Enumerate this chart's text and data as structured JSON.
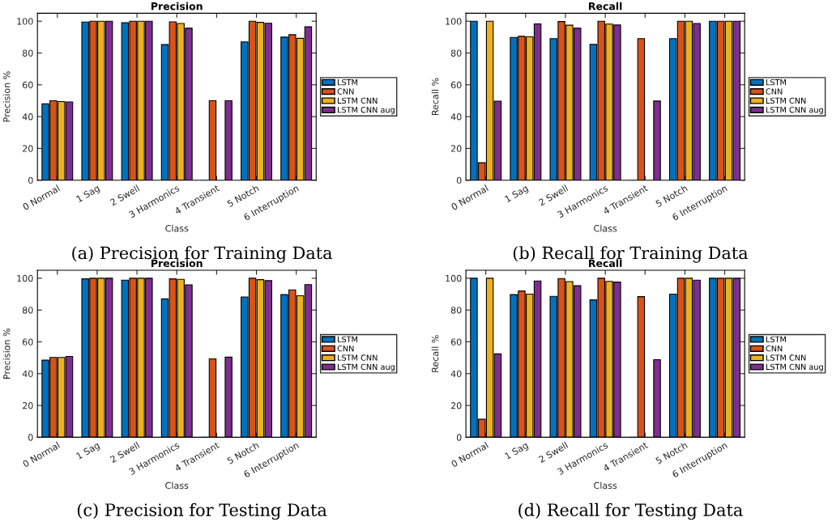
{
  "chart_data": [
    {
      "type": "bar",
      "title": "Precision",
      "xlabel": "Class",
      "ylabel": "Precision %",
      "annotations": [
        "(a) Precision for Training Data"
      ],
      "categories": [
        "0 Normal",
        "1 Sag",
        "2 Swell",
        "3 Harmonics",
        "4 Transient",
        "5 Notch",
        "6 Interruption"
      ],
      "ylim": [
        0,
        105
      ],
      "yticks": [
        0,
        20,
        40,
        60,
        80,
        100
      ],
      "grid": false,
      "legend": "right",
      "series": [
        {
          "name": "LSTM",
          "color": "#0072bd",
          "values": [
            48,
            99.5,
            99,
            85.3,
            0,
            87,
            90
          ]
        },
        {
          "name": "CNN",
          "color": "#d95319",
          "values": [
            50,
            100,
            100,
            99.6,
            50,
            100,
            91.5
          ]
        },
        {
          "name": "LSTM CNN",
          "color": "#edb120",
          "values": [
            49.5,
            100,
            100,
            98.6,
            0,
            99.3,
            89.2
          ]
        },
        {
          "name": "LSTM CNN aug",
          "color": "#7e2f8e",
          "values": [
            49.2,
            100,
            100,
            95.6,
            50,
            98.7,
            96.5
          ]
        }
      ]
    },
    {
      "type": "bar",
      "title": "Recall",
      "xlabel": "Class",
      "ylabel": "Recall %",
      "annotations": [
        "(b) Recall for Training Data"
      ],
      "categories": [
        "0 Normal",
        "1 Sag",
        "2 Swell",
        "3 Harmonics",
        "4 Transient",
        "5 Notch",
        "6 Interruption"
      ],
      "ylim": [
        0,
        105
      ],
      "yticks": [
        0,
        20,
        40,
        60,
        80,
        100
      ],
      "grid": false,
      "legend": "right",
      "series": [
        {
          "name": "LSTM",
          "color": "#0072bd",
          "values": [
            100,
            89.8,
            89,
            85.4,
            0,
            89,
            100
          ]
        },
        {
          "name": "CNN",
          "color": "#d95319",
          "values": [
            11,
            90.5,
            99.8,
            100,
            89,
            100,
            100
          ]
        },
        {
          "name": "LSTM CNN",
          "color": "#edb120",
          "values": [
            100,
            90.2,
            97.5,
            98.2,
            0,
            100,
            100
          ]
        },
        {
          "name": "LSTM CNN aug",
          "color": "#7e2f8e",
          "values": [
            49.7,
            98.3,
            95.6,
            97.6,
            49.8,
            98.6,
            100
          ]
        }
      ]
    },
    {
      "type": "bar",
      "title": "Precision",
      "xlabel": "Class",
      "ylabel": "Precision %",
      "annotations": [
        "(c) Precision for Testing Data"
      ],
      "categories": [
        "0 Normal",
        "1 Sag",
        "2 Swell",
        "3 Harmonics",
        "4 Transient",
        "5 Notch",
        "6 Interruption"
      ],
      "ylim": [
        0,
        105
      ],
      "yticks": [
        0,
        20,
        40,
        60,
        80,
        100
      ],
      "grid": false,
      "legend": "right",
      "series": [
        {
          "name": "LSTM",
          "color": "#0072bd",
          "values": [
            48.5,
            99.6,
            98.8,
            87,
            0,
            88.2,
            89.7
          ]
        },
        {
          "name": "CNN",
          "color": "#d95319",
          "values": [
            50.2,
            100,
            100,
            99.6,
            49.3,
            100,
            92.7
          ]
        },
        {
          "name": "LSTM CNN",
          "color": "#edb120",
          "values": [
            50.2,
            100,
            100,
            99.3,
            0,
            99.1,
            89
          ]
        },
        {
          "name": "LSTM CNN aug",
          "color": "#7e2f8e",
          "values": [
            50.8,
            100,
            100,
            95.8,
            50.4,
            98.5,
            96
          ]
        }
      ]
    },
    {
      "type": "bar",
      "title": "Recall",
      "xlabel": "Class",
      "ylabel": "Recall %",
      "annotations": [
        "(d) Recall for Testing Data"
      ],
      "categories": [
        "0 Normal",
        "1 Sag",
        "2 Swell",
        "3 Harmonics",
        "4 Transient",
        "5 Notch",
        "6 Interruption"
      ],
      "ylim": [
        0,
        105
      ],
      "yticks": [
        0,
        20,
        40,
        60,
        80,
        100
      ],
      "grid": false,
      "legend": "right",
      "series": [
        {
          "name": "LSTM",
          "color": "#0072bd",
          "values": [
            100,
            89.7,
            88.6,
            86.4,
            0,
            90,
            100
          ]
        },
        {
          "name": "CNN",
          "color": "#d95319",
          "values": [
            11.3,
            92,
            99.8,
            100,
            88.4,
            100,
            100
          ]
        },
        {
          "name": "LSTM CNN",
          "color": "#edb120",
          "values": [
            100,
            90,
            97.9,
            98,
            0,
            100,
            100
          ]
        },
        {
          "name": "LSTM CNN aug",
          "color": "#7e2f8e",
          "values": [
            52.4,
            98.3,
            95.3,
            97.6,
            48.8,
            98.8,
            100
          ]
        }
      ]
    }
  ]
}
